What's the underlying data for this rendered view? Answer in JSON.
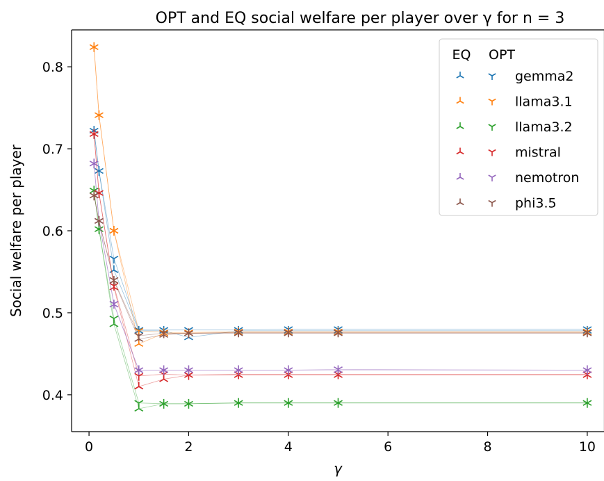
{
  "chart_data": {
    "type": "line",
    "title": "OPT and EQ social welfare per player over γ for n = 3",
    "xlabel": "γ",
    "ylabel": "Social welfare per player",
    "xlim": [
      -0.35,
      10.35
    ],
    "ylim": [
      0.355,
      0.845
    ],
    "xticks": [
      0,
      2,
      4,
      6,
      8,
      10
    ],
    "yticks": [
      0.4,
      0.5,
      0.6,
      0.7,
      0.8
    ],
    "x": [
      0.1,
      0.2,
      0.5,
      1,
      1.5,
      2,
      3,
      4,
      5,
      10
    ],
    "legend": {
      "position": "top-right",
      "headers": [
        "EQ",
        "OPT"
      ]
    },
    "markers": {
      "eq": "tri_up",
      "opt": "tri_down"
    },
    "series": [
      {
        "name": "gemma2",
        "color": "#1f77b4",
        "eq": [
          0.722,
          0.673,
          0.552,
          0.478,
          0.478,
          0.47,
          0.478,
          0.478,
          0.478,
          0.478
        ],
        "opt": [
          0.722,
          0.673,
          0.566,
          0.479,
          0.479,
          0.479,
          0.479,
          0.48,
          0.48,
          0.48
        ]
      },
      {
        "name": "llama3.1",
        "color": "#ff7f0e",
        "eq": [
          0.824,
          0.741,
          0.6,
          0.462,
          0.475,
          0.475,
          0.476,
          0.476,
          0.476,
          0.476
        ],
        "opt": [
          0.824,
          0.741,
          0.6,
          0.478,
          0.476,
          0.476,
          0.477,
          0.477,
          0.477,
          0.477
        ]
      },
      {
        "name": "llama3.2",
        "color": "#2ca02c",
        "eq": [
          0.649,
          0.602,
          0.486,
          0.383,
          0.389,
          0.389,
          0.39,
          0.39,
          0.39,
          0.39
        ],
        "opt": [
          0.649,
          0.602,
          0.493,
          0.39,
          0.389,
          0.389,
          0.39,
          0.39,
          0.39,
          0.39
        ]
      },
      {
        "name": "mistral",
        "color": "#d62728",
        "eq": [
          0.718,
          0.646,
          0.531,
          0.41,
          0.419,
          0.424,
          0.424,
          0.424,
          0.424,
          0.424
        ],
        "opt": [
          0.718,
          0.646,
          0.533,
          0.423,
          0.425,
          0.424,
          0.425,
          0.425,
          0.425,
          0.425
        ]
      },
      {
        "name": "nemotron",
        "color": "#9467bd",
        "eq": [
          0.682,
          0.612,
          0.51,
          0.43,
          0.43,
          0.43,
          0.43,
          0.43,
          0.43,
          0.43
        ],
        "opt": [
          0.682,
          0.612,
          0.511,
          0.43,
          0.43,
          0.43,
          0.43,
          0.43,
          0.431,
          0.43
        ]
      },
      {
        "name": "phi3.5",
        "color": "#8c564b",
        "eq": [
          0.643,
          0.612,
          0.539,
          0.468,
          0.473,
          0.475,
          0.475,
          0.475,
          0.475,
          0.475
        ],
        "opt": [
          0.643,
          0.612,
          0.54,
          0.472,
          0.475,
          0.475,
          0.476,
          0.476,
          0.476,
          0.476
        ]
      }
    ]
  }
}
